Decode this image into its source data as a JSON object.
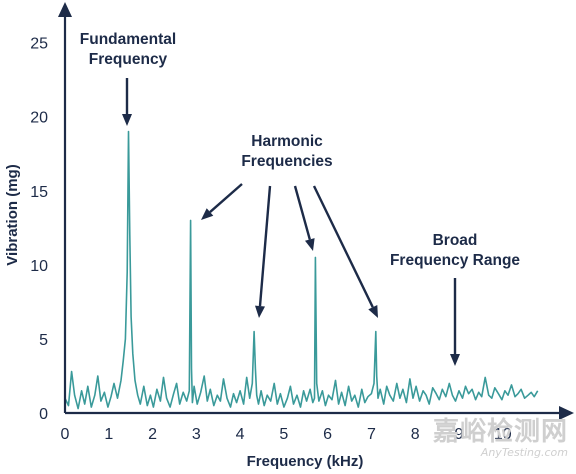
{
  "chart_data": {
    "type": "line",
    "xlabel": "Frequency (kHz)",
    "ylabel": "Vibration (mg)",
    "xlim": [
      0,
      11
    ],
    "ylim": [
      0,
      27
    ],
    "xticks": [
      "0",
      "1",
      "2",
      "3",
      "4",
      "5",
      "6",
      "7",
      "8",
      "9",
      "10"
    ],
    "yticks": [
      "0",
      "5",
      "10",
      "15",
      "20",
      "25"
    ],
    "grid": false,
    "series": [
      {
        "color": "#3a9a9a",
        "x": [
          0.0,
          0.08,
          0.15,
          0.22,
          0.3,
          0.38,
          0.45,
          0.52,
          0.6,
          0.68,
          0.75,
          0.82,
          0.9,
          0.98,
          1.05,
          1.12,
          1.2,
          1.28,
          1.33,
          1.38,
          1.42,
          1.45,
          1.48,
          1.51,
          1.55,
          1.6,
          1.66,
          1.72,
          1.8,
          1.88,
          1.95,
          2.02,
          2.1,
          2.18,
          2.25,
          2.32,
          2.4,
          2.48,
          2.55,
          2.62,
          2.7,
          2.78,
          2.84,
          2.87,
          2.89,
          2.91,
          2.95,
          3.02,
          3.1,
          3.18,
          3.25,
          3.32,
          3.4,
          3.48,
          3.55,
          3.62,
          3.7,
          3.78,
          3.85,
          3.92,
          4.0,
          4.08,
          4.15,
          4.22,
          4.28,
          4.32,
          4.35,
          4.38,
          4.42,
          4.48,
          4.55,
          4.62,
          4.7,
          4.78,
          4.85,
          4.92,
          5.0,
          5.08,
          5.15,
          5.22,
          5.3,
          5.38,
          5.45,
          5.52,
          5.6,
          5.66,
          5.7,
          5.72,
          5.75,
          5.8,
          5.88,
          5.95,
          6.02,
          6.1,
          6.18,
          6.25,
          6.32,
          6.4,
          6.48,
          6.55,
          6.62,
          6.7,
          6.78,
          6.85,
          6.92,
          7.0,
          7.06,
          7.1,
          7.12,
          7.15,
          7.2,
          7.28,
          7.35,
          7.42,
          7.5,
          7.58,
          7.65,
          7.72,
          7.8,
          7.88,
          7.95,
          8.02,
          8.1,
          8.18,
          8.25,
          8.32,
          8.4,
          8.48,
          8.55,
          8.62,
          8.7,
          8.78,
          8.85,
          8.92,
          9.0,
          9.08,
          9.15,
          9.22,
          9.3,
          9.38,
          9.45,
          9.52,
          9.6,
          9.68,
          9.75,
          9.82,
          9.9,
          9.98,
          10.05,
          10.12,
          10.2,
          10.28,
          10.35,
          10.42,
          10.5,
          10.58,
          10.65,
          10.72,
          10.8
        ],
        "y": [
          1.0,
          0.5,
          2.8,
          1.2,
          0.3,
          1.5,
          0.6,
          1.8,
          0.4,
          1.2,
          2.5,
          0.8,
          1.4,
          0.4,
          1.1,
          2.0,
          1.0,
          2.2,
          3.5,
          5.0,
          9.5,
          19.0,
          12.0,
          6.5,
          4.0,
          2.2,
          1.2,
          0.6,
          1.8,
          0.5,
          1.2,
          0.4,
          1.6,
          0.8,
          2.4,
          1.0,
          0.4,
          1.3,
          2.0,
          0.6,
          1.4,
          0.8,
          1.5,
          13.0,
          3.0,
          0.7,
          1.8,
          0.6,
          1.4,
          2.5,
          0.8,
          1.6,
          0.5,
          1.2,
          0.8,
          2.3,
          1.0,
          0.4,
          1.3,
          0.7,
          1.5,
          0.6,
          2.4,
          1.0,
          2.0,
          5.5,
          3.0,
          1.2,
          0.6,
          1.5,
          0.5,
          1.2,
          0.8,
          2.0,
          0.6,
          1.3,
          0.4,
          1.0,
          1.8,
          0.6,
          1.2,
          0.4,
          1.5,
          0.8,
          1.6,
          0.7,
          1.0,
          10.5,
          2.0,
          0.8,
          1.5,
          0.5,
          1.2,
          0.9,
          2.2,
          0.6,
          1.4,
          0.5,
          1.8,
          0.8,
          1.2,
          0.4,
          1.6,
          0.7,
          1.1,
          1.3,
          2.0,
          5.5,
          2.5,
          1.0,
          1.6,
          0.6,
          1.8,
          1.2,
          0.8,
          2.0,
          1.0,
          1.6,
          0.7,
          2.3,
          1.0,
          1.8,
          0.8,
          1.5,
          1.2,
          0.6,
          1.7,
          1.3,
          0.9,
          1.6,
          1.1,
          2.0,
          1.2,
          0.8,
          1.5,
          1.0,
          1.8,
          1.3,
          1.6,
          0.9,
          1.4,
          1.1,
          2.4,
          1.2,
          1.0,
          1.7,
          1.3,
          0.9,
          1.5,
          1.2,
          1.9,
          1.1,
          1.3,
          1.6,
          1.0,
          1.2,
          1.4,
          1.1,
          1.5
        ]
      }
    ],
    "annotations": [
      {
        "lines": [
          "Fundamental",
          "Frequency"
        ]
      },
      {
        "lines": [
          "Harmonic",
          "Frequencies"
        ]
      },
      {
        "lines": [
          "Broad",
          "Frequency Range"
        ]
      }
    ]
  },
  "watermark": {
    "text": "嘉峪检测网",
    "sub": "AnyTesting.com"
  }
}
